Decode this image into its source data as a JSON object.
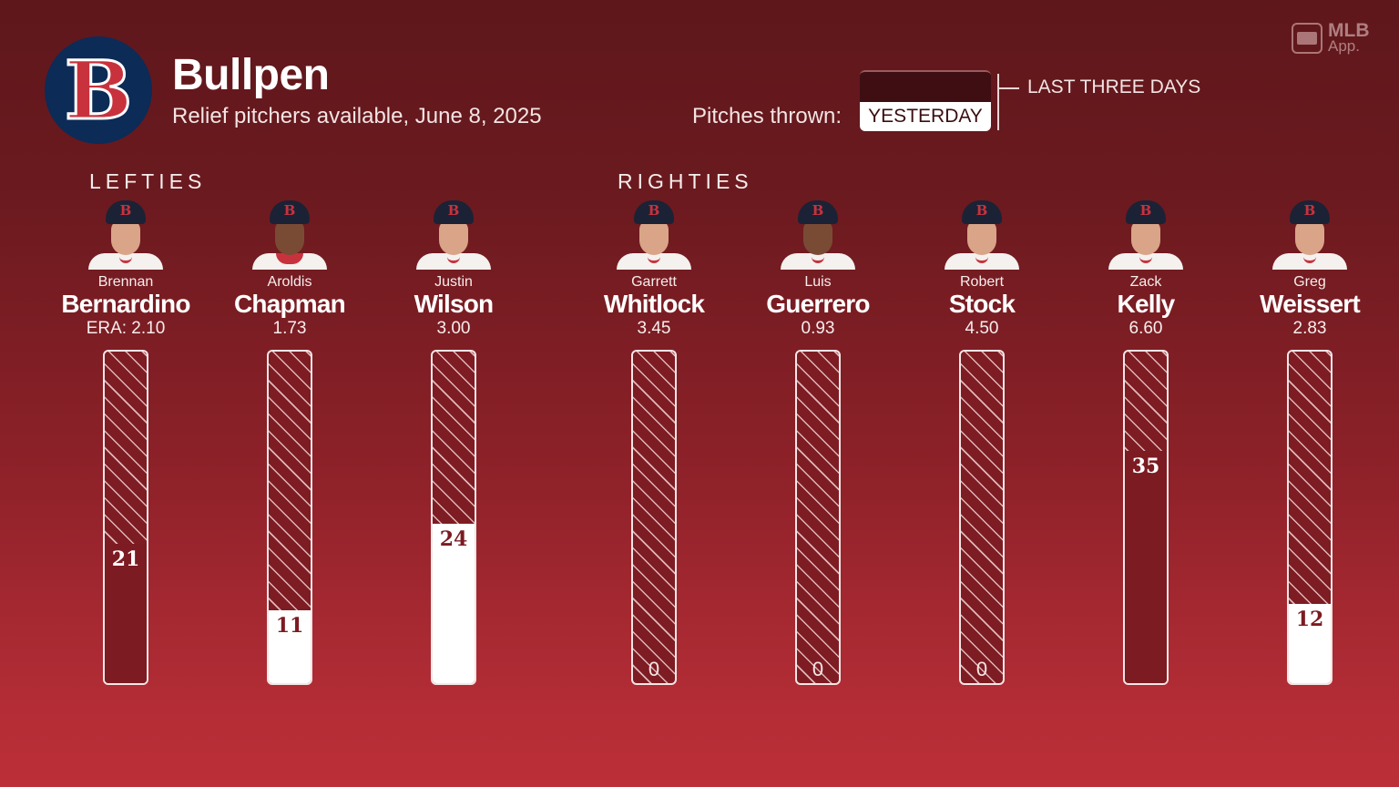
{
  "header": {
    "title": "Bullpen",
    "subtitle": "Relief pitchers available, June 8, 2025",
    "team_logo": "boston-red-sox-b-logo",
    "brand": {
      "line1": "MLB",
      "line2": "App."
    }
  },
  "legend": {
    "pitches_label": "Pitches thrown:",
    "yesterday": "YESTERDAY",
    "last_three_days": "LAST THREE DAYS"
  },
  "groups": {
    "lefties": "LEFTIES",
    "righties": "RIGHTIES"
  },
  "pitchers": [
    {
      "first": "Brennan",
      "last": "Bernardino",
      "era": "ERA: 2.10",
      "pitches": "21",
      "type": "last3"
    },
    {
      "first": "Aroldis",
      "last": "Chapman",
      "era": "1.73",
      "pitches": "11",
      "type": "yest"
    },
    {
      "first": "Justin",
      "last": "Wilson",
      "era": "3.00",
      "pitches": "24",
      "type": "yest"
    },
    {
      "first": "Garrett",
      "last": "Whitlock",
      "era": "3.45",
      "pitches": "0",
      "type": "none"
    },
    {
      "first": "Luis",
      "last": "Guerrero",
      "era": "0.93",
      "pitches": "0",
      "type": "none"
    },
    {
      "first": "Robert",
      "last": "Stock",
      "era": "4.50",
      "pitches": "0",
      "type": "none"
    },
    {
      "first": "Zack",
      "last": "Kelly",
      "era": "6.60",
      "pitches": "35",
      "type": "last3"
    },
    {
      "first": "Greg",
      "last": "Weissert",
      "era": "2.83",
      "pitches": "12",
      "type": "yest"
    }
  ],
  "colors": {
    "bg_top": "#5e171b",
    "bg_bottom": "#bc2e38",
    "last_three_days_fill": "#7c1b22",
    "yesterday_fill": "#ffffff",
    "logo_navy": "#0c2b57",
    "logo_red": "#c8323d"
  },
  "chart_data": {
    "type": "bar",
    "title": "Bullpen",
    "subtitle": "Relief pitchers available, June 8, 2025",
    "xlabel": "",
    "ylabel": "Pitches thrown",
    "ylim": [
      0,
      50
    ],
    "grid": false,
    "legend": [
      "YESTERDAY",
      "LAST THREE DAYS"
    ],
    "groups": [
      {
        "name": "LEFTIES",
        "categories": [
          "Brennan Bernardino",
          "Aroldis Chapman",
          "Justin Wilson"
        ]
      },
      {
        "name": "RIGHTIES",
        "categories": [
          "Garrett Whitlock",
          "Luis Guerrero",
          "Robert Stock",
          "Zack Kelly",
          "Greg Weissert"
        ]
      }
    ],
    "categories": [
      "Brennan Bernardino",
      "Aroldis Chapman",
      "Justin Wilson",
      "Garrett Whitlock",
      "Luis Guerrero",
      "Robert Stock",
      "Zack Kelly",
      "Greg Weissert"
    ],
    "era": [
      2.1,
      1.73,
      3.0,
      3.45,
      0.93,
      4.5,
      6.6,
      2.83
    ],
    "series": [
      {
        "name": "YESTERDAY",
        "values": [
          0,
          11,
          24,
          0,
          0,
          0,
          0,
          12
        ]
      },
      {
        "name": "LAST THREE DAYS",
        "values": [
          21,
          0,
          0,
          0,
          0,
          0,
          35,
          0
        ]
      }
    ],
    "values": [
      21,
      11,
      24,
      0,
      0,
      0,
      35,
      12
    ]
  }
}
